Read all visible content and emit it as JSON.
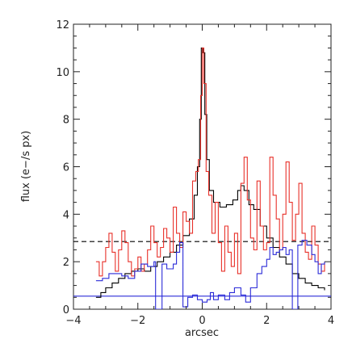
{
  "chart_data": {
    "type": "line",
    "xlabel": "arcsec",
    "ylabel": "flux (e−/s px)",
    "xlim": [
      -4,
      4
    ],
    "ylim": [
      0,
      12
    ],
    "xticks": [
      -4,
      -2,
      0,
      2,
      4
    ],
    "xtick_labels": [
      "−4",
      "−2",
      "0",
      "2",
      "4"
    ],
    "yticks": [
      0,
      2,
      4,
      6,
      8,
      10,
      12
    ],
    "ytick_labels": [
      "0",
      "2",
      "4",
      "6",
      "8",
      "10",
      "12"
    ],
    "grid": false,
    "series": [
      {
        "color": "#000000",
        "style": "step",
        "points": [
          [
            -3.3,
            0.5
          ],
          [
            -3.15,
            0.7
          ],
          [
            -3.0,
            0.9
          ],
          [
            -2.8,
            1.1
          ],
          [
            -2.6,
            1.3
          ],
          [
            -2.4,
            1.5
          ],
          [
            -2.2,
            1.6
          ],
          [
            -2.0,
            1.7
          ],
          [
            -1.8,
            1.6
          ],
          [
            -1.6,
            1.8
          ],
          [
            -1.4,
            2.0
          ],
          [
            -1.2,
            2.2
          ],
          [
            -1.0,
            2.4
          ],
          [
            -0.8,
            2.7
          ],
          [
            -0.6,
            3.1
          ],
          [
            -0.4,
            3.8
          ],
          [
            -0.25,
            4.8
          ],
          [
            -0.15,
            6.0
          ],
          [
            -0.08,
            8.0
          ],
          [
            -0.03,
            11.0
          ],
          [
            0.02,
            10.8
          ],
          [
            0.08,
            8.2
          ],
          [
            0.14,
            6.3
          ],
          [
            0.22,
            5.0
          ],
          [
            0.35,
            4.5
          ],
          [
            0.55,
            4.3
          ],
          [
            0.75,
            4.4
          ],
          [
            0.95,
            4.6
          ],
          [
            1.1,
            5.0
          ],
          [
            1.2,
            5.2
          ],
          [
            1.3,
            5.0
          ],
          [
            1.45,
            4.4
          ],
          [
            1.6,
            4.2
          ],
          [
            1.8,
            3.5
          ],
          [
            2.0,
            3.0
          ],
          [
            2.2,
            2.6
          ],
          [
            2.4,
            2.2
          ],
          [
            2.6,
            1.9
          ],
          [
            2.8,
            1.5
          ],
          [
            3.0,
            1.3
          ],
          [
            3.2,
            1.1
          ],
          [
            3.4,
            1.0
          ],
          [
            3.6,
            0.9
          ],
          [
            3.8,
            0.8
          ]
        ]
      },
      {
        "color": "#e8312a",
        "style": "step",
        "points": [
          [
            -3.3,
            2.0
          ],
          [
            -3.2,
            1.4
          ],
          [
            -3.1,
            2.0
          ],
          [
            -3.0,
            2.6
          ],
          [
            -2.9,
            3.2
          ],
          [
            -2.8,
            2.4
          ],
          [
            -2.7,
            1.6
          ],
          [
            -2.6,
            2.5
          ],
          [
            -2.5,
            3.3
          ],
          [
            -2.4,
            2.8
          ],
          [
            -2.3,
            2.0
          ],
          [
            -2.2,
            1.4
          ],
          [
            -2.1,
            1.7
          ],
          [
            -2.0,
            2.2
          ],
          [
            -1.9,
            1.6
          ],
          [
            -1.8,
            1.9
          ],
          [
            -1.7,
            2.5
          ],
          [
            -1.6,
            3.5
          ],
          [
            -1.5,
            2.8
          ],
          [
            -1.4,
            2.2
          ],
          [
            -1.3,
            2.6
          ],
          [
            -1.2,
            3.4
          ],
          [
            -1.1,
            3.0
          ],
          [
            -1.0,
            2.4
          ],
          [
            -0.9,
            4.3
          ],
          [
            -0.8,
            3.2
          ],
          [
            -0.7,
            2.6
          ],
          [
            -0.6,
            4.1
          ],
          [
            -0.5,
            3.7
          ],
          [
            -0.4,
            3.2
          ],
          [
            -0.3,
            5.4
          ],
          [
            -0.2,
            5.8
          ],
          [
            -0.12,
            6.3
          ],
          [
            -0.05,
            9.0
          ],
          [
            0.0,
            11.0
          ],
          [
            0.05,
            9.5
          ],
          [
            0.12,
            5.8
          ],
          [
            0.2,
            4.8
          ],
          [
            0.3,
            3.2
          ],
          [
            0.4,
            4.5
          ],
          [
            0.5,
            2.8
          ],
          [
            0.6,
            1.6
          ],
          [
            0.7,
            3.5
          ],
          [
            0.8,
            2.4
          ],
          [
            0.9,
            1.8
          ],
          [
            1.0,
            3.2
          ],
          [
            1.1,
            1.5
          ],
          [
            1.2,
            5.3
          ],
          [
            1.3,
            6.4
          ],
          [
            1.4,
            4.6
          ],
          [
            1.5,
            3.0
          ],
          [
            1.6,
            2.5
          ],
          [
            1.7,
            5.4
          ],
          [
            1.8,
            3.5
          ],
          [
            1.9,
            2.5
          ],
          [
            2.0,
            2.8
          ],
          [
            2.1,
            6.4
          ],
          [
            2.2,
            4.8
          ],
          [
            2.3,
            3.8
          ],
          [
            2.4,
            2.5
          ],
          [
            2.5,
            4.0
          ],
          [
            2.6,
            6.2
          ],
          [
            2.7,
            4.5
          ],
          [
            2.8,
            2.9
          ],
          [
            2.9,
            4.0
          ],
          [
            3.0,
            5.3
          ],
          [
            3.1,
            3.2
          ],
          [
            3.2,
            2.4
          ],
          [
            3.3,
            2.1
          ],
          [
            3.4,
            3.5
          ],
          [
            3.5,
            2.7
          ],
          [
            3.6,
            1.9
          ],
          [
            3.7,
            1.6
          ],
          [
            3.8,
            2.0
          ]
        ]
      },
      {
        "color": "#2b2bd8",
        "style": "step",
        "points": [
          [
            -3.3,
            1.2
          ],
          [
            -3.1,
            1.3
          ],
          [
            -2.9,
            1.5
          ],
          [
            -2.7,
            1.5
          ],
          [
            -2.5,
            1.4
          ],
          [
            -2.3,
            1.3
          ],
          [
            -2.1,
            1.6
          ],
          [
            -1.9,
            1.9
          ],
          [
            -1.7,
            1.8
          ],
          [
            -1.5,
            2.0
          ],
          [
            -1.45,
            0.0
          ],
          [
            -1.25,
            1.9
          ],
          [
            -1.1,
            1.7
          ],
          [
            -0.9,
            1.9
          ],
          [
            -0.8,
            2.4
          ],
          [
            -0.7,
            2.8
          ],
          [
            -0.6,
            0.1
          ],
          [
            -0.45,
            0.5
          ],
          [
            -0.3,
            0.6
          ],
          [
            -0.15,
            0.4
          ],
          [
            0.0,
            0.3
          ],
          [
            0.15,
            0.4
          ],
          [
            0.25,
            0.7
          ],
          [
            0.35,
            0.4
          ],
          [
            0.5,
            0.6
          ],
          [
            0.7,
            0.4
          ],
          [
            0.85,
            0.7
          ],
          [
            1.0,
            0.9
          ],
          [
            1.2,
            0.6
          ],
          [
            1.35,
            0.3
          ],
          [
            1.5,
            0.9
          ],
          [
            1.7,
            1.5
          ],
          [
            1.85,
            1.8
          ],
          [
            2.0,
            2.1
          ],
          [
            2.1,
            2.6
          ],
          [
            2.2,
            2.3
          ],
          [
            2.3,
            2.4
          ],
          [
            2.4,
            2.5
          ],
          [
            2.5,
            2.6
          ],
          [
            2.6,
            2.3
          ],
          [
            2.7,
            2.5
          ],
          [
            2.8,
            0.0
          ],
          [
            2.97,
            2.7
          ],
          [
            3.1,
            2.9
          ],
          [
            3.25,
            2.7
          ],
          [
            3.4,
            2.3
          ],
          [
            3.5,
            2.0
          ],
          [
            3.6,
            1.5
          ],
          [
            3.7,
            1.9
          ],
          [
            3.8,
            2.0
          ]
        ]
      }
    ],
    "reference_lines": [
      {
        "color": "#000000",
        "style": "dashed",
        "y": 2.85
      },
      {
        "color": "#2b2bd8",
        "style": "solid",
        "y": 0.55
      }
    ]
  }
}
